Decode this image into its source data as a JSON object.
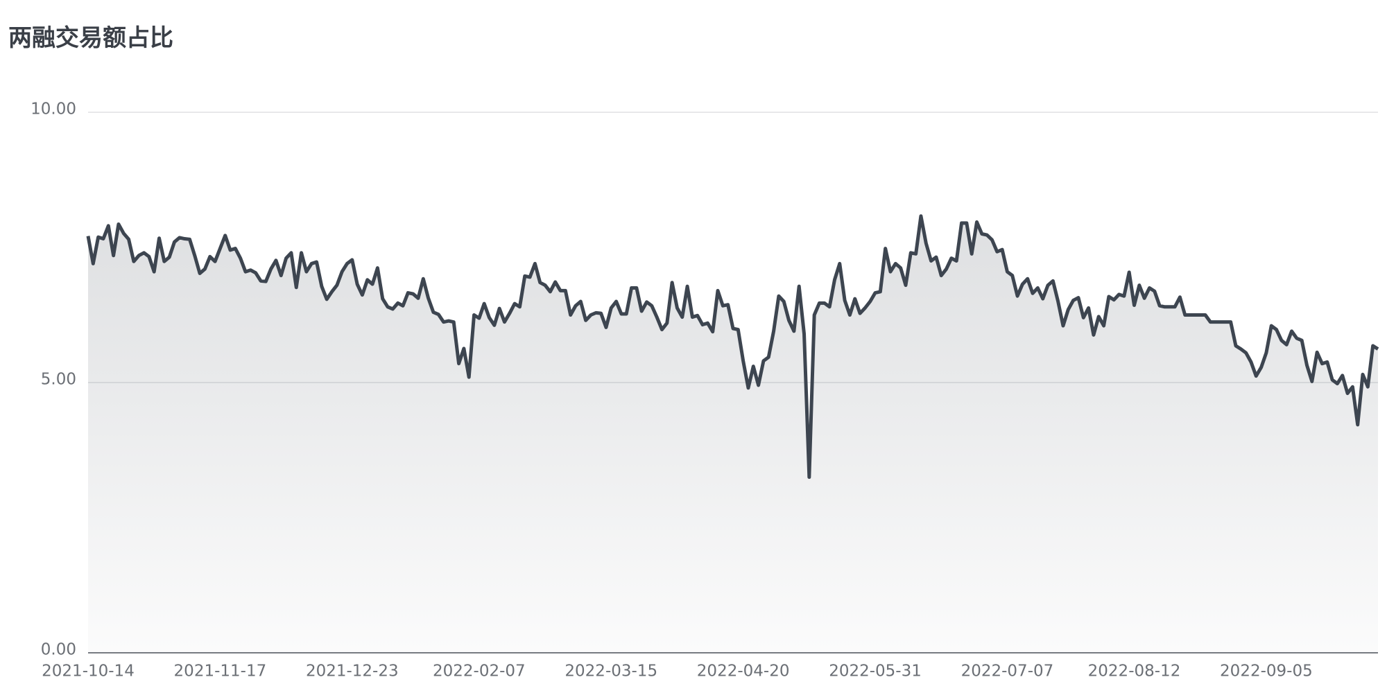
{
  "chart_data": {
    "type": "area",
    "title": "两融交易额占比",
    "categories": [
      "2021-10-14",
      null,
      null,
      null,
      null,
      null,
      null,
      null,
      null,
      null,
      null,
      null,
      null,
      null,
      null,
      null,
      null,
      null,
      null,
      null,
      null,
      null,
      null,
      null,
      null,
      null,
      "2021-11-17",
      null,
      null,
      null,
      null,
      null,
      null,
      null,
      null,
      null,
      null,
      null,
      null,
      null,
      null,
      null,
      null,
      null,
      null,
      null,
      null,
      null,
      null,
      null,
      null,
      null,
      "2021-12-23",
      null,
      null,
      null,
      null,
      null,
      null,
      null,
      null,
      null,
      null,
      null,
      null,
      null,
      null,
      null,
      null,
      null,
      null,
      null,
      null,
      null,
      null,
      null,
      null,
      "2022-02-07",
      null,
      null,
      null,
      null,
      null,
      null,
      null,
      null,
      null,
      null,
      null,
      null,
      null,
      null,
      null,
      null,
      null,
      null,
      null,
      null,
      null,
      null,
      null,
      null,
      null,
      "2022-03-15",
      null,
      null,
      null,
      null,
      null,
      null,
      null,
      null,
      null,
      null,
      null,
      null,
      null,
      null,
      null,
      null,
      null,
      null,
      null,
      null,
      null,
      null,
      null,
      null,
      null,
      "2022-04-20",
      null,
      null,
      null,
      null,
      null,
      null,
      null,
      null,
      null,
      null,
      null,
      null,
      null,
      null,
      null,
      null,
      null,
      null,
      null,
      null,
      null,
      null,
      null,
      null,
      null,
      "2022-05-31",
      null,
      null,
      null,
      null,
      null,
      null,
      null,
      null,
      null,
      null,
      null,
      null,
      null,
      null,
      null,
      null,
      null,
      null,
      null,
      null,
      null,
      null,
      null,
      null,
      null,
      "2022-07-07",
      null,
      null,
      null,
      null,
      null,
      null,
      null,
      null,
      null,
      null,
      null,
      null,
      null,
      null,
      null,
      null,
      null,
      null,
      null,
      null,
      null,
      null,
      null,
      null,
      "2022-08-12",
      null,
      null,
      null,
      null,
      null,
      null,
      null,
      null,
      null,
      null,
      null,
      null,
      null,
      null,
      null,
      null,
      null,
      null,
      null,
      null,
      null,
      null,
      null,
      null,
      null,
      "2022-09-05",
      null,
      null,
      null,
      null,
      null,
      null,
      null,
      null,
      null,
      null,
      null,
      null,
      null,
      null,
      null,
      null,
      null,
      null,
      null,
      null,
      null,
      null
    ],
    "values": [
      7.71,
      7.2,
      7.69,
      7.66,
      7.9,
      7.35,
      7.93,
      7.76,
      7.65,
      7.24,
      7.35,
      7.4,
      7.33,
      7.05,
      7.67,
      7.24,
      7.32,
      7.6,
      7.68,
      7.66,
      7.65,
      7.35,
      7.02,
      7.1,
      7.33,
      7.24,
      7.48,
      7.72,
      7.45,
      7.48,
      7.3,
      7.05,
      7.08,
      7.03,
      6.88,
      6.87,
      7.1,
      7.26,
      6.98,
      7.3,
      7.4,
      6.76,
      7.4,
      7.05,
      7.2,
      7.23,
      6.78,
      6.54,
      6.68,
      6.8,
      7.05,
      7.2,
      7.27,
      6.82,
      6.62,
      6.9,
      6.82,
      7.12,
      6.55,
      6.4,
      6.36,
      6.47,
      6.42,
      6.66,
      6.64,
      6.56,
      6.92,
      6.56,
      6.3,
      6.26,
      6.12,
      6.14,
      6.12,
      5.35,
      5.63,
      5.1,
      6.25,
      6.19,
      6.46,
      6.2,
      6.06,
      6.37,
      6.12,
      6.28,
      6.46,
      6.4,
      6.97,
      6.95,
      7.2,
      6.85,
      6.8,
      6.68,
      6.86,
      6.7,
      6.7,
      6.25,
      6.42,
      6.5,
      6.15,
      6.25,
      6.29,
      6.28,
      6.02,
      6.38,
      6.5,
      6.27,
      6.27,
      6.75,
      6.75,
      6.32,
      6.49,
      6.42,
      6.21,
      5.98,
      6.1,
      6.85,
      6.38,
      6.21,
      6.78,
      6.21,
      6.24,
      6.07,
      6.1,
      5.94,
      6.7,
      6.42,
      6.44,
      6.0,
      5.98,
      5.4,
      4.9,
      5.3,
      4.95,
      5.4,
      5.47,
      5.95,
      6.6,
      6.5,
      6.15,
      5.95,
      6.78,
      5.9,
      3.25,
      6.25,
      6.47,
      6.47,
      6.4,
      6.9,
      7.2,
      6.52,
      6.25,
      6.55,
      6.28,
      6.38,
      6.5,
      6.66,
      6.68,
      7.48,
      7.05,
      7.2,
      7.12,
      6.8,
      7.4,
      7.38,
      8.08,
      7.58,
      7.25,
      7.32,
      6.98,
      7.1,
      7.3,
      7.25,
      7.95,
      7.95,
      7.38,
      7.97,
      7.75,
      7.73,
      7.64,
      7.42,
      7.46,
      7.05,
      6.98,
      6.6,
      6.82,
      6.92,
      6.65,
      6.75,
      6.55,
      6.8,
      6.88,
      6.5,
      6.05,
      6.35,
      6.52,
      6.57,
      6.2,
      6.38,
      5.88,
      6.22,
      6.05,
      6.59,
      6.53,
      6.63,
      6.6,
      7.04,
      6.43,
      6.8,
      6.56,
      6.75,
      6.69,
      6.42,
      6.4,
      6.4,
      6.4,
      6.58,
      6.25,
      6.25,
      6.25,
      6.25,
      6.25,
      6.12,
      6.12,
      6.12,
      6.12,
      6.12,
      5.68,
      5.62,
      5.55,
      5.38,
      5.12,
      5.28,
      5.55,
      6.05,
      5.98,
      5.78,
      5.7,
      5.95,
      5.82,
      5.78,
      5.32,
      5.02,
      5.56,
      5.35,
      5.38,
      5.05,
      4.98,
      5.13,
      4.8,
      4.92,
      4.22,
      5.15,
      4.92,
      5.68,
      5.62
    ],
    "color": "#3d4550",
    "ylim": [
      0,
      10
    ],
    "yticks": [
      {
        "value": 0,
        "label": "0.00"
      },
      {
        "value": 5,
        "label": "5.00"
      },
      {
        "value": 10,
        "label": "10.00"
      }
    ],
    "grid": true
  }
}
